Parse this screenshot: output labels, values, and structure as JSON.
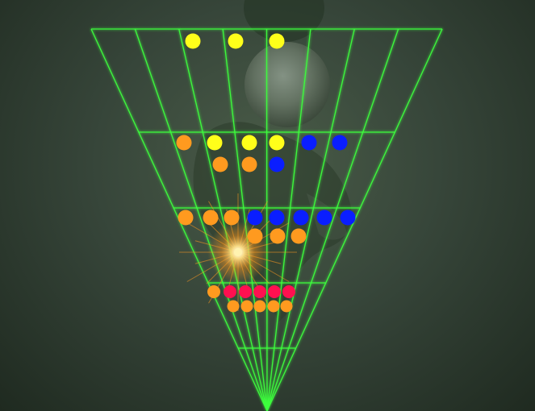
{
  "colors": {
    "grid_line": "#3dff3d",
    "yellow": "#ffff1a",
    "orange": "#ff9a1f",
    "blue": "#0a1eff",
    "red": "#ff1050",
    "light": "#fff3b0"
  },
  "grid": {
    "columns": 8,
    "depth_rows": 5
  },
  "objects": {
    "background_figure": "silhouette-figure",
    "sphere": "glass-sphere",
    "light_flare": "light-spark"
  },
  "rows": [
    {
      "name": "row-1",
      "dots": [
        "yellow",
        "yellow",
        "yellow"
      ]
    },
    {
      "name": "row-2",
      "dots": [
        "orange",
        "yellow",
        "yellow",
        "yellow",
        "blue",
        "blue"
      ]
    },
    {
      "name": "row-3",
      "dots": [
        "orange",
        "orange",
        "blue"
      ]
    },
    {
      "name": "row-4",
      "dots": [
        "orange",
        "orange",
        "orange",
        "blue",
        "blue",
        "blue",
        "blue",
        "blue"
      ]
    },
    {
      "name": "row-5",
      "dots": [
        "orange",
        "orange",
        "orange"
      ]
    },
    {
      "name": "row-6",
      "dots": [
        "orange",
        "red",
        "red",
        "red",
        "red",
        "red"
      ]
    },
    {
      "name": "row-7",
      "dots": [
        "orange",
        "orange",
        "orange",
        "orange",
        "orange"
      ]
    }
  ]
}
